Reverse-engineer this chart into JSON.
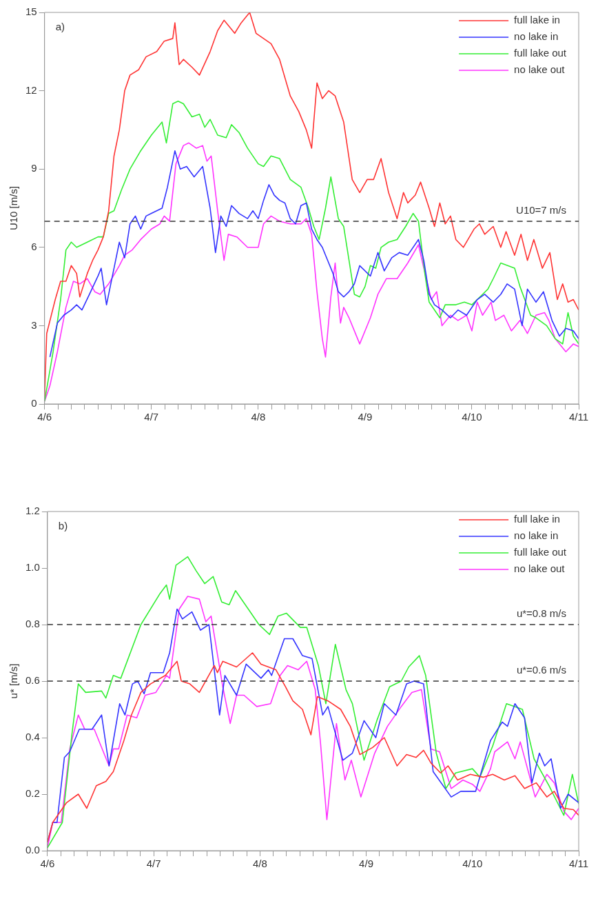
{
  "chart_data": [
    {
      "type": "line",
      "ylabel": "U10 [m/s]",
      "annotations": [
        "a)"
      ],
      "legend": "top right",
      "grid": false,
      "xlim": [
        "--04-06T00:00",
        "--04-11T00:00"
      ],
      "ylim": [
        0,
        15
      ],
      "yticks": [
        0,
        3,
        6,
        9,
        12,
        15
      ],
      "xticks": [
        {
          "value": "--04-06T00:00",
          "label": "4/6"
        },
        {
          "value": "--04-06T03:00",
          "label": null
        },
        {
          "value": "--04-06T06:00",
          "label": null
        },
        {
          "value": "--04-06T09:00",
          "label": null
        },
        {
          "value": "--04-06T12:00",
          "label": null
        },
        {
          "value": "--04-06T15:00",
          "label": null
        },
        {
          "value": "--04-06T18:00",
          "label": null
        },
        {
          "value": "--04-06T21:00",
          "label": null
        },
        {
          "value": "--04-07T00:00",
          "label": "4/7"
        },
        {
          "value": "--04-07T03:00",
          "label": null
        },
        {
          "value": "--04-07T06:00",
          "label": null
        },
        {
          "value": "--04-07T09:00",
          "label": null
        },
        {
          "value": "--04-07T12:00",
          "label": null
        },
        {
          "value": "--04-07T15:00",
          "label": null
        },
        {
          "value": "--04-07T18:00",
          "label": null
        },
        {
          "value": "--04-07T21:00",
          "label": null
        },
        {
          "value": "--04-08T00:00",
          "label": "4/8"
        },
        {
          "value": "--04-08T03:00",
          "label": null
        },
        {
          "value": "--04-08T06:00",
          "label": null
        },
        {
          "value": "--04-08T09:00",
          "label": null
        },
        {
          "value": "--04-08T12:00",
          "label": null
        },
        {
          "value": "--04-08T15:00",
          "label": null
        },
        {
          "value": "--04-08T18:00",
          "label": null
        },
        {
          "value": "--04-08T21:00",
          "label": null
        },
        {
          "value": "--04-09T00:00",
          "label": "4/9"
        },
        {
          "value": "--04-09T03:00",
          "label": null
        },
        {
          "value": "--04-09T06:00",
          "label": null
        },
        {
          "value": "--04-09T09:00",
          "label": null
        },
        {
          "value": "--04-09T12:00",
          "label": null
        },
        {
          "value": "--04-09T15:00",
          "label": null
        },
        {
          "value": "--04-09T18:00",
          "label": null
        },
        {
          "value": "--04-09T21:00",
          "label": null
        },
        {
          "value": "--04-10T00:00",
          "label": "4/10"
        },
        {
          "value": "--04-10T03:00",
          "label": null
        },
        {
          "value": "--04-10T06:00",
          "label": null
        },
        {
          "value": "--04-10T09:00",
          "label": null
        },
        {
          "value": "--04-10T12:00",
          "label": null
        },
        {
          "value": "--04-10T15:00",
          "label": null
        },
        {
          "value": "--04-10T18:00",
          "label": null
        },
        {
          "value": "--04-10T21:00",
          "label": null
        },
        {
          "value": "--04-11T00:00",
          "label": "4/11"
        }
      ],
      "ref_lines": [
        {
          "axis": "y",
          "value": 7,
          "label": "U10=7 m/s",
          "color": "#333333",
          "line_style": "dashed"
        }
      ],
      "series": [
        {
          "name": "full lake in",
          "color": "#ff3333",
          "x": [
            "--04-06T00:00",
            "--04-06T00:29",
            "--04-06T02:24",
            "--04-06T03:36",
            "--04-06T04:48",
            "--04-06T06:00",
            "--04-06T07:12",
            "--04-06T07:55",
            "--04-06T09:36",
            "--04-06T10:48",
            "--04-06T12:00",
            "--04-06T13:12",
            "--04-06T14:24",
            "--04-06T15:36",
            "--04-06T16:48",
            "--04-06T18:00",
            "--04-06T19:12",
            "--04-06T21:07",
            "--04-06T22:48",
            "--04-07T01:12",
            "--04-07T02:53",
            "--04-07T04:48",
            "--04-07T05:17",
            "--04-07T06:14",
            "--04-07T07:12",
            "--04-07T09:07",
            "--04-07T10:48",
            "--04-07T13:12",
            "--04-07T14:53",
            "--04-07T16:19",
            "--04-07T18:43",
            "--04-07T20:10",
            "--04-07T22:05",
            "--04-07T23:31",
            "--04-08T01:12",
            "--04-08T02:53",
            "--04-08T04:48",
            "--04-08T07:12",
            "--04-08T09:07",
            "--04-08T10:48",
            "--04-08T12:00",
            "--04-08T13:12",
            "--04-08T14:24",
            "--04-08T15:50",
            "--04-08T17:17",
            "--04-08T19:12",
            "--04-08T21:07",
            "--04-08T22:48",
            "--04-09T00:29",
            "--04-09T01:55",
            "--04-09T03:36",
            "--04-09T05:17",
            "--04-09T07:12",
            "--04-09T08:38",
            "--04-09T09:36",
            "--04-09T11:17",
            "--04-09T12:29",
            "--04-09T14:24",
            "--04-09T15:36",
            "--04-09T16:48",
            "--04-09T18:00",
            "--04-09T19:12",
            "--04-09T20:24",
            "--04-09T22:05",
            "--04-10T00:29",
            "--04-10T01:41",
            "--04-10T02:53",
            "--04-10T04:48",
            "--04-10T06:29",
            "--04-10T07:41",
            "--04-10T09:36",
            "--04-10T11:02",
            "--04-10T12:29",
            "--04-10T13:55",
            "--04-10T15:50",
            "--04-10T17:31",
            "--04-10T19:12",
            "--04-10T20:24",
            "--04-10T21:36",
            "--04-10T22:48",
            "--04-11T00:00"
          ],
          "values": [
            0.3,
            2.7,
            4,
            4.7,
            4.7,
            5.3,
            5,
            4.1,
            5,
            5.5,
            5.9,
            6.4,
            7.4,
            9.5,
            10.5,
            12,
            12.6,
            12.8,
            13.3,
            13.5,
            13.9,
            14,
            14.6,
            13,
            13.2,
            12.9,
            12.6,
            13.5,
            14.3,
            14.7,
            14.2,
            14.6,
            15,
            14.2,
            14,
            13.8,
            13.2,
            11.8,
            11.2,
            10.5,
            9.8,
            12.3,
            11.7,
            12,
            11.8,
            10.8,
            8.6,
            8.1,
            8.6,
            8.6,
            9.4,
            8.1,
            7.1,
            8.1,
            7.7,
            8,
            8.5,
            7.5,
            6.8,
            7.7,
            6.9,
            7.2,
            6.3,
            6,
            6.7,
            6.9,
            6.5,
            6.8,
            6,
            6.6,
            5.7,
            6.5,
            5.5,
            6.3,
            5.2,
            5.8,
            4,
            4.6,
            3.9,
            4,
            3.6
          ]
        },
        {
          "name": "no lake in",
          "color": "#3333ff",
          "x": [
            "--04-06T01:12",
            "--04-06T02:53",
            "--04-06T04:19",
            "--04-06T06:00",
            "--04-06T07:12",
            "--04-06T08:24",
            "--04-06T10:05",
            "--04-06T12:00",
            "--04-06T12:43",
            "--04-06T13:55",
            "--04-06T15:36",
            "--04-06T16:48",
            "--04-06T18:00",
            "--04-06T19:12",
            "--04-06T20:24",
            "--04-06T21:36",
            "--04-06T22:48",
            "--04-07T00:00",
            "--04-07T02:24",
            "--04-07T03:36",
            "--04-07T05:17",
            "--04-07T06:29",
            "--04-07T07:55",
            "--04-07T09:36",
            "--04-07T11:31",
            "--04-07T13:12",
            "--04-07T14:24",
            "--04-07T15:36",
            "--04-07T16:48",
            "--04-07T18:00",
            "--04-07T19:41",
            "--04-07T21:36",
            "--04-07T22:48",
            "--04-08T00:00",
            "--04-08T01:12",
            "--04-08T02:24",
            "--04-08T03:36",
            "--04-08T04:48",
            "--04-08T06:00",
            "--04-08T07:12",
            "--04-08T08:24",
            "--04-08T09:36",
            "--04-08T10:48",
            "--04-08T12:00",
            "--04-08T13:12",
            "--04-08T14:24",
            "--04-08T15:36",
            "--04-08T16:48",
            "--04-08T18:00",
            "--04-08T19:12",
            "--04-08T20:24",
            "--04-08T21:36",
            "--04-08T22:48",
            "--04-09T01:12",
            "--04-09T02:53",
            "--04-09T04:19",
            "--04-09T06:00",
            "--04-09T07:41",
            "--04-09T09:36",
            "--04-09T12:00",
            "--04-09T13:12",
            "--04-09T14:24",
            "--04-09T15:36",
            "--04-09T17:17",
            "--04-09T19:12",
            "--04-09T20:53",
            "--04-09T22:48",
            "--04-10T01:12",
            "--04-10T02:53",
            "--04-10T04:48",
            "--04-10T06:29",
            "--04-10T07:55",
            "--04-10T09:36",
            "--04-10T11:17",
            "--04-10T12:29",
            "--04-10T14:24",
            "--04-10T16:05",
            "--04-10T18:00",
            "--04-10T19:41",
            "--04-10T21:07",
            "--04-10T22:48",
            "--04-11T00:00"
          ],
          "values": [
            1.8,
            3.1,
            3.4,
            3.6,
            3.8,
            3.6,
            4.2,
            4.9,
            5.2,
            3.8,
            5.2,
            6.2,
            5.6,
            6.9,
            7.2,
            6.7,
            7.2,
            7.3,
            7.5,
            8.3,
            9.7,
            9,
            9.1,
            8.7,
            9.1,
            7.5,
            5.8,
            7.2,
            6.8,
            7.6,
            7.3,
            7.1,
            7.4,
            7.1,
            7.8,
            8.4,
            8,
            7.8,
            7.7,
            7.1,
            6.9,
            7.6,
            7.7,
            6.7,
            6.3,
            6,
            5.5,
            5,
            4.3,
            4.1,
            4.3,
            4.6,
            5.3,
            4.9,
            5.8,
            5.1,
            5.6,
            5.8,
            5.7,
            6.3,
            5.5,
            4.2,
            3.8,
            3.6,
            3.3,
            3.6,
            3.4,
            4,
            4.2,
            3.9,
            4.2,
            4.6,
            4.4,
            3,
            4.4,
            3.9,
            4.3,
            3.2,
            2.6,
            2.9,
            2.8,
            2.5
          ]
        },
        {
          "name": "full lake out",
          "color": "#33ee33",
          "x": [
            "--04-06T00:00",
            "--04-06T01:55",
            "--04-06T03:36",
            "--04-06T04:48",
            "--04-06T06:00",
            "--04-06T07:12",
            "--04-06T09:36",
            "--04-06T12:00",
            "--04-06T13:12",
            "--04-06T14:24",
            "--04-06T15:36",
            "--04-06T17:17",
            "--04-06T19:12",
            "--04-06T21:36",
            "--04-07T00:00",
            "--04-07T02:24",
            "--04-07T03:22",
            "--04-07T04:48",
            "--04-07T06:00",
            "--04-07T07:12",
            "--04-07T09:07",
            "--04-07T10:48",
            "--04-07T12:00",
            "--04-07T13:12",
            "--04-07T14:53",
            "--04-07T16:48",
            "--04-07T18:00",
            "--04-07T19:41",
            "--04-07T21:36",
            "--04-08T00:00",
            "--04-08T01:12",
            "--04-08T02:53",
            "--04-08T04:48",
            "--04-08T07:12",
            "--04-08T09:36",
            "--04-08T11:17",
            "--04-08T12:29",
            "--04-08T13:41",
            "--04-08T15:07",
            "--04-08T16:19",
            "--04-08T18:00",
            "--04-08T19:12",
            "--04-08T20:24",
            "--04-08T21:36",
            "--04-08T22:48",
            "--04-09T00:00",
            "--04-09T01:12",
            "--04-09T02:24",
            "--04-09T03:36",
            "--04-09T05:17",
            "--04-09T07:12",
            "--04-09T09:07",
            "--04-09T10:48",
            "--04-09T12:00",
            "--04-09T13:26",
            "--04-09T14:24",
            "--04-09T16:48",
            "--04-09T18:00",
            "--04-09T20:24",
            "--04-09T22:19",
            "--04-10T00:00",
            "--04-10T02:24",
            "--04-10T03:36",
            "--04-10T04:48",
            "--04-10T06:29",
            "--04-10T09:36",
            "--04-10T10:48",
            "--04-10T13:12",
            "--04-10T14:24",
            "--04-10T16:48",
            "--04-10T18:43",
            "--04-10T20:24",
            "--04-10T21:36",
            "--04-10T22:48",
            "--04-11T00:00"
          ],
          "values": [
            0.1,
            2,
            4,
            5.9,
            6.2,
            6,
            6.2,
            6.4,
            6.4,
            7.3,
            7.4,
            8.2,
            9,
            9.7,
            10.3,
            10.8,
            10,
            11.5,
            11.6,
            11.5,
            11,
            11.1,
            10.6,
            10.9,
            10.3,
            10.2,
            10.7,
            10.4,
            9.8,
            9.2,
            9.1,
            9.5,
            9.4,
            8.6,
            8.3,
            7.5,
            6.8,
            6.3,
            7.5,
            8.7,
            7.1,
            6.8,
            5.5,
            4.2,
            4.1,
            4.5,
            5.3,
            5.2,
            6,
            6.2,
            6.3,
            6.8,
            7.3,
            7,
            5,
            3.9,
            3.3,
            3.8,
            3.8,
            3.9,
            3.8,
            4.2,
            4.4,
            4.8,
            5.4,
            5.2,
            4.5,
            3.4,
            3.3,
            3,
            2.5,
            2.3,
            3.5,
            2.6,
            2.3
          ]
        },
        {
          "name": "no lake out",
          "color": "#ff33ff",
          "x": [
            "--04-06T00:00",
            "--04-06T01:12",
            "--04-06T02:53",
            "--04-06T04:48",
            "--04-06T06:29",
            "--04-06T07:55",
            "--04-06T09:36",
            "--04-06T11:17",
            "--04-06T12:29",
            "--04-06T14:24",
            "--04-06T16:48",
            "--04-06T18:00",
            "--04-06T19:41",
            "--04-06T21:36",
            "--04-07T00:00",
            "--04-07T01:55",
            "--04-07T02:53",
            "--04-07T04:05",
            "--04-07T05:31",
            "--04-07T07:12",
            "--04-07T08:24",
            "--04-07T10:05",
            "--04-07T11:31",
            "--04-07T12:29",
            "--04-07T13:26",
            "--04-07T14:53",
            "--04-07T16:19",
            "--04-07T17:17",
            "--04-07T19:12",
            "--04-07T21:36",
            "--04-08T00:00",
            "--04-08T01:12",
            "--04-08T02:53",
            "--04-08T04:48",
            "--04-08T07:12",
            "--04-08T09:36",
            "--04-08T10:48",
            "--04-08T12:00",
            "--04-08T13:12",
            "--04-08T14:24",
            "--04-08T15:07",
            "--04-08T16:19",
            "--04-08T17:17",
            "--04-08T18:29",
            "--04-08T19:12",
            "--04-08T20:24",
            "--04-08T22:48",
            "--04-09T01:12",
            "--04-09T02:53",
            "--04-09T04:48",
            "--04-09T07:12",
            "--04-09T09:36",
            "--04-09T12:00",
            "--04-09T13:12",
            "--04-09T14:53",
            "--04-09T16:05",
            "--04-09T17:17",
            "--04-09T19:12",
            "--04-09T20:53",
            "--04-09T22:48",
            "--04-10T00:00",
            "--04-10T01:12",
            "--04-10T02:24",
            "--04-10T04:19",
            "--04-10T05:17",
            "--04-10T07:12",
            "--04-10T08:53",
            "--04-10T10:48",
            "--04-10T12:29",
            "--04-10T14:24",
            "--04-10T16:19",
            "--04-10T17:17",
            "--04-10T18:43",
            "--04-10T21:07",
            "--04-10T22:48",
            "--04-11T00:00"
          ],
          "values": [
            0.1,
            0.7,
            2,
            3.7,
            4.7,
            4.6,
            4.8,
            4.3,
            4.2,
            4.6,
            5.3,
            5.7,
            5.9,
            6.3,
            6.7,
            6.9,
            7.2,
            7,
            9.2,
            9.9,
            10,
            9.8,
            9.9,
            9.3,
            9.5,
            7.4,
            5.5,
            6.5,
            6.4,
            6,
            6,
            6.9,
            7.2,
            7,
            6.9,
            6.9,
            7.1,
            6.5,
            4.3,
            2.5,
            1.8,
            4.1,
            5.4,
            3.1,
            3.7,
            3.3,
            2.3,
            3.3,
            4.2,
            4.8,
            4.8,
            5.4,
            6.1,
            5.2,
            4,
            4.3,
            3,
            3.4,
            3.2,
            3.4,
            2.8,
            3.9,
            3.4,
            3.9,
            3.2,
            3.4,
            2.8,
            3.2,
            2.7,
            3.4,
            3.5,
            3.2,
            2.5,
            2,
            2.3,
            2.2
          ]
        }
      ]
    },
    {
      "type": "line",
      "ylabel": "u* [m/s]",
      "annotations": [
        "b)"
      ],
      "legend": "top right",
      "grid": false,
      "xlim": [
        "--04-06T00:00",
        "--04-11T00:00"
      ],
      "ylim": [
        0,
        1.2
      ],
      "yticks": [
        {
          "value": 0,
          "label": "0.0"
        },
        {
          "value": 0.2,
          "label": "0.2"
        },
        {
          "value": 0.4,
          "label": "0.4"
        },
        {
          "value": 0.6,
          "label": "0.6"
        },
        {
          "value": 0.8,
          "label": "0.8"
        },
        {
          "value": 1,
          "label": "1.0"
        },
        {
          "value": 1.2,
          "label": "1.2"
        }
      ],
      "xticks": [
        {
          "value": "--04-06T00:00",
          "label": "4/6"
        },
        {
          "value": "--04-06T03:00",
          "label": null
        },
        {
          "value": "--04-06T06:00",
          "label": null
        },
        {
          "value": "--04-06T09:00",
          "label": null
        },
        {
          "value": "--04-06T12:00",
          "label": null
        },
        {
          "value": "--04-06T15:00",
          "label": null
        },
        {
          "value": "--04-06T18:00",
          "label": null
        },
        {
          "value": "--04-06T21:00",
          "label": null
        },
        {
          "value": "--04-07T00:00",
          "label": "4/7"
        },
        {
          "value": "--04-07T03:00",
          "label": null
        },
        {
          "value": "--04-07T06:00",
          "label": null
        },
        {
          "value": "--04-07T09:00",
          "label": null
        },
        {
          "value": "--04-07T12:00",
          "label": null
        },
        {
          "value": "--04-07T15:00",
          "label": null
        },
        {
          "value": "--04-07T18:00",
          "label": null
        },
        {
          "value": "--04-07T21:00",
          "label": null
        },
        {
          "value": "--04-08T00:00",
          "label": "4/8"
        },
        {
          "value": "--04-08T03:00",
          "label": null
        },
        {
          "value": "--04-08T06:00",
          "label": null
        },
        {
          "value": "--04-08T09:00",
          "label": null
        },
        {
          "value": "--04-08T12:00",
          "label": null
        },
        {
          "value": "--04-08T15:00",
          "label": null
        },
        {
          "value": "--04-08T18:00",
          "label": null
        },
        {
          "value": "--04-08T21:00",
          "label": null
        },
        {
          "value": "--04-09T00:00",
          "label": "4/9"
        },
        {
          "value": "--04-09T03:00",
          "label": null
        },
        {
          "value": "--04-09T06:00",
          "label": null
        },
        {
          "value": "--04-09T09:00",
          "label": null
        },
        {
          "value": "--04-09T12:00",
          "label": null
        },
        {
          "value": "--04-09T15:00",
          "label": null
        },
        {
          "value": "--04-09T18:00",
          "label": null
        },
        {
          "value": "--04-09T21:00",
          "label": null
        },
        {
          "value": "--04-10T00:00",
          "label": "4/10"
        },
        {
          "value": "--04-10T03:00",
          "label": null
        },
        {
          "value": "--04-10T06:00",
          "label": null
        },
        {
          "value": "--04-10T09:00",
          "label": null
        },
        {
          "value": "--04-10T12:00",
          "label": null
        },
        {
          "value": "--04-10T15:00",
          "label": null
        },
        {
          "value": "--04-10T18:00",
          "label": null
        },
        {
          "value": "--04-10T21:00",
          "label": null
        },
        {
          "value": "--04-11T00:00",
          "label": "4/11"
        }
      ],
      "ref_lines": [
        {
          "axis": "y",
          "value": 0.8,
          "label": "u*=0.8 m/s",
          "color": "#333333",
          "line_style": "dashed"
        },
        {
          "axis": "y",
          "value": 0.6,
          "label": "u*=0.6 m/s",
          "color": "#333333",
          "line_style": "dashed"
        }
      ],
      "series": [
        {
          "name": "full lake in",
          "color": "#ff3333",
          "x": [
            "--04-06T00:00",
            "--04-06T01:12",
            "--04-06T04:19",
            "--04-06T06:58",
            "--04-06T08:53",
            "--04-06T11:02",
            "--04-06T13:12",
            "--04-06T14:53",
            "--04-06T17:17",
            "--04-06T18:58",
            "--04-06T21:07",
            "--04-06T23:17",
            "--04-07T02:38",
            "--04-07T05:17",
            "--04-07T06:14",
            "--04-07T08:10",
            "--04-07T10:19",
            "--04-07T13:41",
            "--04-07T14:24",
            "--04-07T15:36",
            "--04-07T18:43",
            "--04-07T22:19",
            "--04-08T00:14",
            "--04-08T03:36",
            "--04-08T05:46",
            "--04-08T07:26",
            "--04-08T09:36",
            "--04-08T11:31",
            "--04-08T12:58",
            "--04-08T15:22",
            "--04-08T18:14",
            "--04-08T20:24",
            "--04-08T22:34",
            "--04-09T01:26",
            "--04-09T04:05",
            "--04-09T06:58",
            "--04-09T09:07",
            "--04-09T11:17",
            "--04-09T12:58",
            "--04-09T14:38",
            "--04-09T16:48",
            "--04-09T18:29",
            "--04-09T20:38",
            "--04-09T23:31",
            "--04-10T02:24",
            "--04-10T04:34",
            "--04-10T07:12",
            "--04-10T09:36",
            "--04-10T11:46",
            "--04-10T14:24",
            "--04-10T16:48",
            "--04-10T18:29",
            "--04-10T20:38",
            "--04-10T22:48",
            "--04-11T00:00"
          ],
          "values": [
            0.03,
            0.1,
            0.17,
            0.2,
            0.15,
            0.23,
            0.245,
            0.28,
            0.39,
            0.48,
            0.56,
            0.59,
            0.62,
            0.67,
            0.6,
            0.59,
            0.56,
            0.655,
            0.63,
            0.67,
            0.65,
            0.7,
            0.66,
            0.64,
            0.58,
            0.53,
            0.5,
            0.41,
            0.545,
            0.53,
            0.5,
            0.44,
            0.34,
            0.365,
            0.4,
            0.3,
            0.34,
            0.33,
            0.355,
            0.31,
            0.275,
            0.3,
            0.25,
            0.27,
            0.26,
            0.27,
            0.25,
            0.265,
            0.22,
            0.24,
            0.19,
            0.21,
            0.15,
            0.145,
            0.125
          ]
        },
        {
          "name": "no lake in",
          "color": "#3333ff",
          "x": [
            "--04-06T00:00",
            "--04-06T01:12",
            "--04-06T02:10",
            "--04-06T03:50",
            "--04-06T05:02",
            "--04-06T07:12",
            "--04-06T10:05",
            "--04-06T12:14",
            "--04-06T13:55",
            "--04-06T16:19",
            "--04-06T17:31",
            "--04-06T19:12",
            "--04-06T20:24",
            "--04-06T21:50",
            "--04-06T23:17",
            "--04-07T02:10",
            "--04-07T03:36",
            "--04-07T05:17",
            "--04-07T06:29",
            "--04-07T08:38",
            "--04-07T10:34",
            "--04-07T12:29",
            "--04-07T14:53",
            "--04-07T16:05",
            "--04-07T18:43",
            "--04-07T20:53",
            "--04-08T00:14",
            "--04-08T01:55",
            "--04-08T02:38",
            "--04-08T05:31",
            "--04-08T07:26",
            "--04-08T09:36",
            "--04-08T11:46",
            "--04-08T14:10",
            "--04-08T15:22",
            "--04-08T18:43",
            "--04-08T20:53",
            "--04-08T23:31",
            "--04-09T02:10",
            "--04-09T04:05",
            "--04-09T06:43",
            "--04-09T09:07",
            "--04-09T10:48",
            "--04-09T12:58",
            "--04-09T15:07",
            "--04-09T19:12",
            "--04-09T21:22",
            "--04-10T00:43",
            "--04-10T04:05",
            "--04-10T06:43",
            "--04-10T07:55",
            "--04-10T09:36",
            "--04-10T11:46",
            "--04-10T13:26",
            "--04-10T15:07",
            "--04-10T16:19",
            "--04-10T17:46",
            "--04-10T19:55",
            "--04-10T21:36",
            "--04-11T00:00"
          ],
          "values": [
            0.03,
            0.1,
            0.1,
            0.33,
            0.35,
            0.43,
            0.43,
            0.48,
            0.3,
            0.52,
            0.48,
            0.59,
            0.6,
            0.555,
            0.63,
            0.63,
            0.7,
            0.855,
            0.82,
            0.845,
            0.78,
            0.8,
            0.48,
            0.62,
            0.55,
            0.66,
            0.61,
            0.64,
            0.62,
            0.75,
            0.75,
            0.69,
            0.68,
            0.48,
            0.51,
            0.32,
            0.345,
            0.46,
            0.4,
            0.52,
            0.48,
            0.59,
            0.6,
            0.59,
            0.28,
            0.19,
            0.21,
            0.21,
            0.39,
            0.455,
            0.44,
            0.52,
            0.47,
            0.24,
            0.345,
            0.3,
            0.325,
            0.15,
            0.2,
            0.17
          ]
        },
        {
          "name": "full lake out",
          "color": "#33ee33",
          "x": [
            "--04-06T00:00",
            "--04-06T03:22",
            "--04-06T05:31",
            "--04-06T06:58",
            "--04-06T08:38",
            "--04-06T12:14",
            "--04-06T13:12",
            "--04-06T14:53",
            "--04-06T16:34",
            "--04-06T21:07",
            "--04-07T01:26",
            "--04-07T02:53",
            "--04-07T03:36",
            "--04-07T05:02",
            "--04-07T07:41",
            "--04-07T09:36",
            "--04-07T11:31",
            "--04-07T13:26",
            "--04-07T15:22",
            "--04-07T17:02",
            "--04-07T18:29",
            "--04-07T21:22",
            "--04-07T23:46",
            "--04-08T02:10",
            "--04-08T04:05",
            "--04-08T06:00",
            "--04-08T09:07",
            "--04-08T10:34",
            "--04-08T13:12",
            "--04-08T14:53",
            "--04-08T17:02",
            "--04-08T19:26",
            "--04-08T20:53",
            "--04-08T23:31",
            "--04-09T02:24",
            "--04-09T05:17",
            "--04-09T07:55",
            "--04-09T09:36",
            "--04-09T12:00",
            "--04-09T13:26",
            "--04-09T15:50",
            "--04-09T18:00",
            "--04-09T20:10",
            "--04-10T00:00",
            "--04-10T01:41",
            "--04-10T04:34",
            "--04-10T07:41",
            "--04-10T11:17",
            "--04-10T13:55",
            "--04-10T17:17",
            "--04-10T20:38",
            "--04-10T22:34",
            "--04-11T00:00"
          ],
          "values": [
            0.01,
            0.1,
            0.41,
            0.59,
            0.56,
            0.565,
            0.54,
            0.62,
            0.61,
            0.8,
            0.91,
            0.94,
            0.89,
            1.01,
            1.04,
            0.99,
            0.945,
            0.97,
            0.88,
            0.87,
            0.92,
            0.855,
            0.8,
            0.765,
            0.83,
            0.84,
            0.79,
            0.79,
            0.655,
            0.52,
            0.73,
            0.57,
            0.52,
            0.32,
            0.46,
            0.58,
            0.6,
            0.65,
            0.69,
            0.62,
            0.345,
            0.22,
            0.275,
            0.29,
            0.26,
            0.37,
            0.52,
            0.5,
            0.325,
            0.23,
            0.125,
            0.27,
            0.165
          ]
        },
        {
          "name": "no lake out",
          "color": "#ff33ff",
          "x": [
            "--04-06T00:00",
            "--04-06T01:12",
            "--04-06T03:07",
            "--04-06T05:02",
            "--04-06T06:58",
            "--04-06T08:24",
            "--04-06T10:34",
            "--04-06T13:55",
            "--04-06T14:53",
            "--04-06T16:05",
            "--04-06T18:00",
            "--04-06T20:10",
            "--04-06T22:05",
            "--04-07T00:29",
            "--04-07T02:53",
            "--04-07T03:36",
            "--04-07T05:46",
            "--04-07T07:41",
            "--04-07T10:19",
            "--04-07T11:46",
            "--04-07T12:58",
            "--04-07T15:36",
            "--04-07T17:17",
            "--04-07T18:43",
            "--04-07T20:24",
            "--04-07T23:17",
            "--04-08T02:24",
            "--04-08T04:34",
            "--04-08T06:14",
            "--04-08T08:38",
            "--04-08T10:34",
            "--04-08T12:29",
            "--04-08T13:41",
            "--04-08T15:07",
            "--04-08T17:17",
            "--04-08T19:12",
            "--04-08T20:38",
            "--04-08T22:48",
            "--04-09T01:55",
            "--04-09T04:48",
            "--04-09T07:55",
            "--04-09T10:19",
            "--04-09T12:29",
            "--04-09T14:38",
            "--04-09T16:34",
            "--04-09T19:12",
            "--04-09T21:50",
            "--04-10T00:00",
            "--04-10T01:41",
            "--04-10T04:05",
            "--04-10T05:02",
            "--04-10T07:55",
            "--04-10T09:36",
            "--04-10T10:48",
            "--04-10T14:10",
            "--04-10T16:48",
            "--04-10T18:29",
            "--04-10T20:38",
            "--04-10T22:19",
            "--04-11T00:00"
          ],
          "values": [
            0.01,
            0.1,
            0.1,
            0.36,
            0.48,
            0.43,
            0.43,
            0.3,
            0.36,
            0.36,
            0.48,
            0.47,
            0.55,
            0.56,
            0.62,
            0.61,
            0.855,
            0.9,
            0.89,
            0.81,
            0.83,
            0.58,
            0.45,
            0.55,
            0.55,
            0.51,
            0.52,
            0.62,
            0.655,
            0.64,
            0.67,
            0.57,
            0.38,
            0.11,
            0.45,
            0.25,
            0.32,
            0.19,
            0.345,
            0.44,
            0.51,
            0.56,
            0.57,
            0.36,
            0.35,
            0.22,
            0.25,
            0.235,
            0.21,
            0.29,
            0.35,
            0.385,
            0.325,
            0.385,
            0.19,
            0.27,
            0.24,
            0.14,
            0.11,
            0.15
          ]
        }
      ]
    }
  ]
}
